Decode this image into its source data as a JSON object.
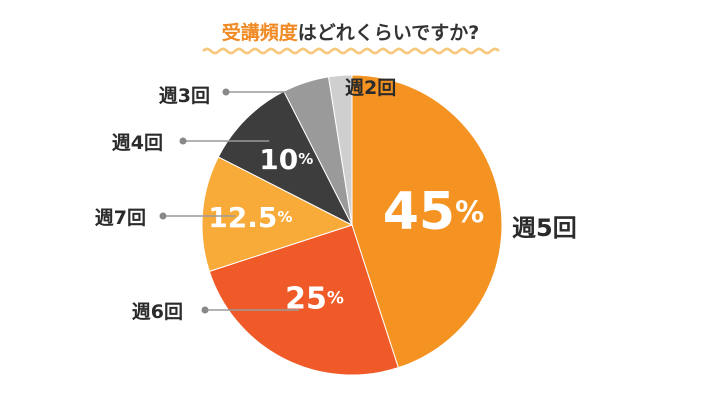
{
  "title": {
    "highlight": "受講頻度",
    "rest": "はどれくらいですか?"
  },
  "chart_data": {
    "type": "pie",
    "categories": [
      "週5回",
      "週6回",
      "週7回",
      "週4回",
      "週3回",
      "週2回"
    ],
    "values": [
      45,
      25,
      12.5,
      10,
      5,
      2.5
    ],
    "value_labels": [
      "45%",
      "25%",
      "12.5%",
      "10%",
      "",
      ""
    ],
    "colors": [
      "#f59322",
      "#f05a28",
      "#f9ab3a",
      "#3d3d3d",
      "#9a9a9a",
      "#cfcfcf"
    ],
    "start_angle_deg": 0,
    "direction": "clockwise"
  }
}
